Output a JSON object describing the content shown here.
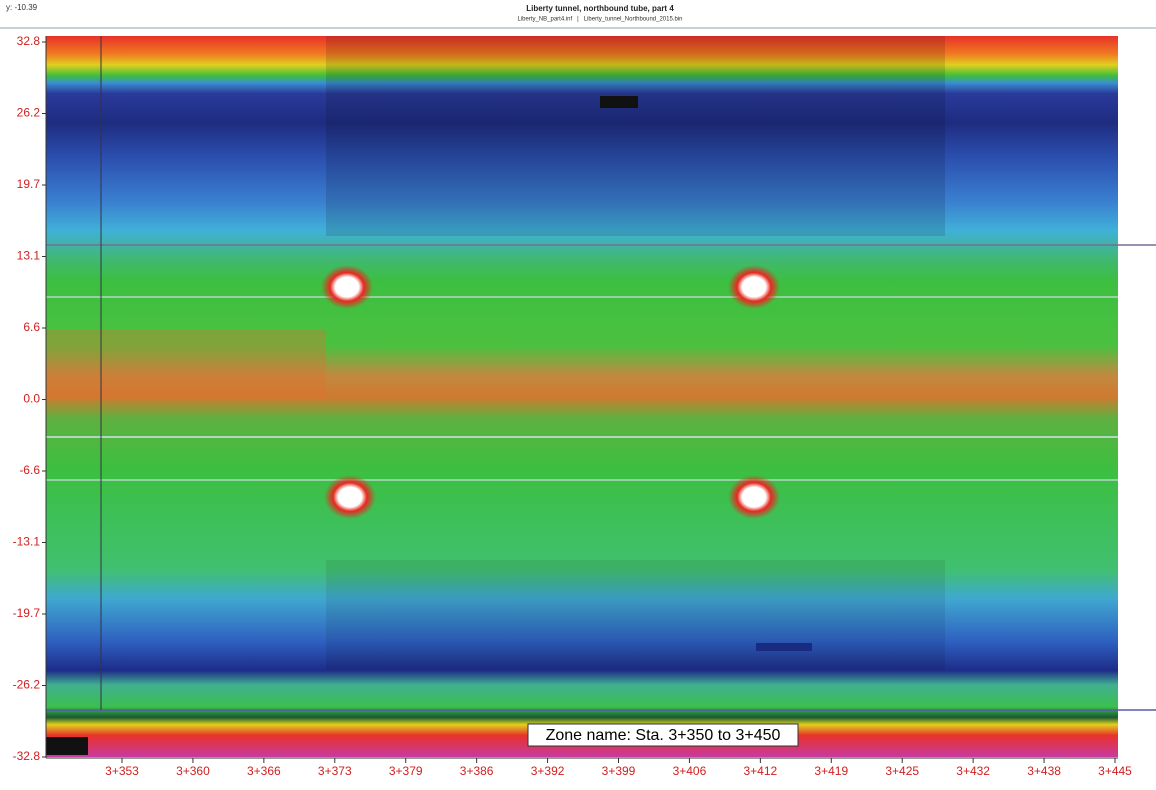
{
  "header": {
    "title": "Liberty tunnel, northbound tube, part 4",
    "subtitle": "Liberty_NB_part4.inf   |   Liberty_tunnel_Northbound_2015.bin",
    "cursor": "y: -10.39"
  },
  "y_axis": {
    "labels": [
      "32.8",
      "26.2",
      "19.7",
      "13.1",
      "6.6",
      "0.0",
      "-6.6",
      "-13.1",
      "-19.7",
      "-26.2",
      "-32.8"
    ]
  },
  "x_axis": {
    "labels": [
      "3+353",
      "3+360",
      "3+366",
      "3+373",
      "3+379",
      "3+386",
      "3+392",
      "3+399",
      "3+406",
      "3+412",
      "3+419",
      "3+425",
      "3+432",
      "3+438",
      "3+445"
    ]
  },
  "zone": {
    "label": "Zone name: Sta. 3+350 to 3+450"
  }
}
